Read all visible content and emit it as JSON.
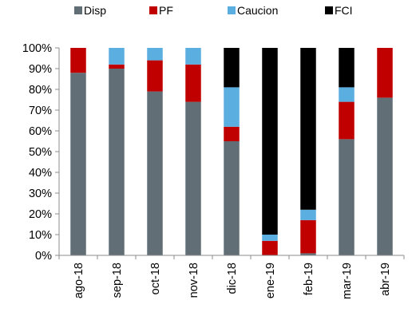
{
  "chart_data": {
    "type": "bar",
    "stacked": true,
    "normalized_percent": true,
    "categories": [
      "ago-18",
      "sep-18",
      "oct-18",
      "nov-18",
      "dic-18",
      "ene-19",
      "feb-19",
      "mar-19",
      "abr-19"
    ],
    "series": [
      {
        "name": "Disp",
        "color": "#626e75",
        "values": [
          88,
          90,
          79,
          74,
          55,
          0,
          1,
          56,
          76
        ]
      },
      {
        "name": "PF",
        "color": "#c00000",
        "values": [
          12,
          2,
          15,
          18,
          7,
          7,
          16,
          18,
          24
        ]
      },
      {
        "name": "Caucion",
        "color": "#5aaee0",
        "values": [
          0,
          8,
          6,
          8,
          19,
          3,
          5,
          7,
          0
        ]
      },
      {
        "name": "FCI",
        "color": "#000000",
        "values": [
          0,
          0,
          0,
          0,
          19,
          90,
          78,
          19,
          0
        ]
      }
    ],
    "ylim": [
      0,
      100
    ],
    "y_ticks": [
      "0%",
      "10%",
      "20%",
      "30%",
      "40%",
      "50%",
      "60%",
      "70%",
      "80%",
      "90%",
      "100%"
    ],
    "legend_position": "top",
    "grid": false
  }
}
